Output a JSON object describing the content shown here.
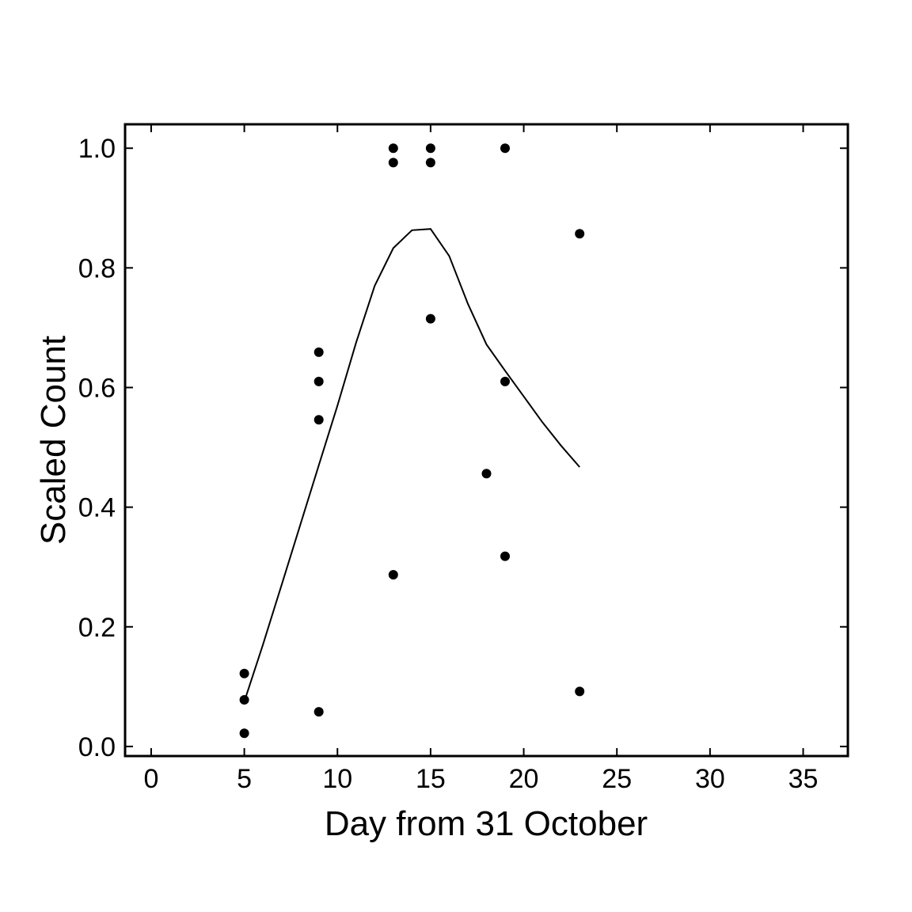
{
  "chart_data": {
    "type": "scatter",
    "title": "",
    "xlabel": "Day from 31 October",
    "ylabel": "Scaled Count",
    "xlim": [
      -1.4,
      37.4
    ],
    "ylim": [
      -0.016,
      1.04
    ],
    "xticks": [
      0,
      5,
      10,
      15,
      20,
      25,
      30,
      35
    ],
    "xtick_labels": [
      "0",
      "5",
      "10",
      "15",
      "20",
      "25",
      "30",
      "35"
    ],
    "yticks": [
      0.0,
      0.2,
      0.4,
      0.6,
      0.8,
      1.0
    ],
    "ytick_labels": [
      "0.0",
      "0.2",
      "0.4",
      "0.6",
      "0.8",
      "1.0"
    ],
    "grid": false,
    "legend": "none",
    "colors": {
      "points": "#000000",
      "line": "#000000"
    },
    "points": {
      "x": [
        5,
        5,
        5,
        9,
        9,
        9,
        9,
        13,
        13,
        13,
        15,
        15,
        15,
        18,
        19,
        19,
        19,
        23,
        23
      ],
      "y": [
        0.122,
        0.078,
        0.022,
        0.659,
        0.61,
        0.546,
        0.058,
        1.0,
        0.976,
        0.287,
        1.0,
        0.976,
        0.715,
        0.456,
        1.0,
        0.61,
        0.318,
        0.857,
        0.092
      ]
    },
    "fitted_curve": {
      "x": [
        5,
        6,
        7,
        8,
        9,
        10,
        11,
        12,
        13,
        14,
        15,
        16,
        17,
        18,
        19,
        20,
        21,
        22,
        23
      ],
      "y": [
        0.075,
        0.17,
        0.27,
        0.37,
        0.47,
        0.57,
        0.675,
        0.77,
        0.833,
        0.863,
        0.865,
        0.82,
        0.74,
        0.672,
        0.628,
        0.585,
        0.542,
        0.503,
        0.467
      ]
    }
  }
}
